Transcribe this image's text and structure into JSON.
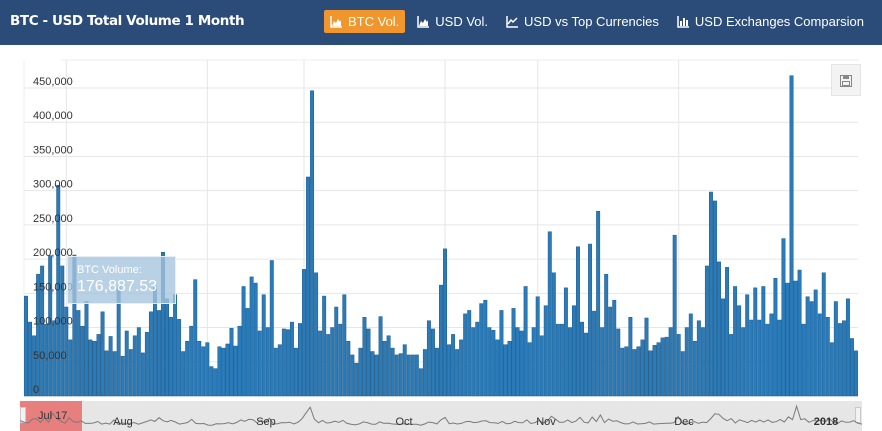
{
  "header": {
    "title": "BTC - USD Total Volume 1 Month",
    "tabs": [
      {
        "label": "BTC Vol.",
        "active": true,
        "icon": "area-chart-icon"
      },
      {
        "label": "USD Vol.",
        "active": false,
        "icon": "area-chart-icon"
      },
      {
        "label": "USD vs Top Currencies",
        "active": false,
        "icon": "line-chart-icon"
      },
      {
        "label": "USD Exchanges Comparsion",
        "active": false,
        "icon": "bar-chart-icon"
      }
    ]
  },
  "colors": {
    "header_bg": "#2b4b78",
    "active_tab": "#f0962d",
    "bar": "#2b7bb9",
    "bar_stroke": "#1d5a8a",
    "grid": "#e6e6e6"
  },
  "tooltip": {
    "label": "BTC Volume:",
    "value": "176,887.53"
  },
  "navigator": {
    "selected_label": "Jul 17"
  },
  "chart_data": {
    "type": "bar",
    "series": [
      {
        "name": "BTC Volume",
        "values": [
          146000,
          108000,
          88000,
          178000,
          190000,
          105000,
          205000,
          110000,
          308000,
          190000,
          130000,
          82000,
          206000,
          125000,
          102000,
          138000,
          82000,
          80000,
          90000,
          123000,
          66000,
          87000,
          65000,
          160000,
          58000,
          95000,
          68000,
          88000,
          100000,
          63000,
          93000,
          123000,
          160000,
          125000,
          210000,
          142000,
          115000,
          148000,
          112000,
          65000,
          80000,
          102000,
          170000,
          80000,
          72000,
          78000,
          43000,
          40000,
          72000,
          70000,
          76000,
          99000,
          73000,
          102000,
          160000,
          128000,
          174000,
          165000,
          95000,
          148000,
          100000,
          198000,
          70000,
          75000,
          98000,
          97000,
          108000,
          70000,
          106000,
          185000,
          320000,
          446000,
          180000,
          95000,
          146000,
          90000,
          100000,
          130000,
          105000,
          148000,
          80000,
          60000,
          48000,
          70000,
          115000,
          98000,
          65000,
          60000,
          116000,
          80000,
          88000,
          70000,
          60000,
          62000,
          75000,
          60000,
          60000,
          60000,
          40000,
          68000,
          110000,
          98000,
          70000,
          162000,
          215000,
          75000,
          90000,
          68000,
          82000,
          120000,
          125000,
          100000,
          108000,
          135000,
          140000,
          100000,
          96000,
          82000,
          125000,
          75000,
          80000,
          128000,
          100000,
          95000,
          160000,
          78000,
          100000,
          145000,
          88000,
          132000,
          240000,
          180000,
          105000,
          105000,
          158000,
          100000,
          132000,
          218000,
          108000,
          92000,
          222000,
          124000,
          270000,
          100000,
          178000,
          130000,
          140000,
          98000,
          70000,
          72000,
          115000,
          68000,
          72000,
          82000,
          114000,
          66000,
          74000,
          78000,
          85000,
          86000,
          100000,
          235000,
          90000,
          65000,
          100000,
          120000,
          80000,
          110000,
          100000,
          190000,
          298000,
          285000,
          196000,
          142000,
          188000,
          90000,
          160000,
          132000,
          100000,
          148000,
          111000,
          158000,
          111000,
          160000,
          105000,
          120000,
          172000,
          111000,
          230000,
          165000,
          468000,
          168000,
          184000,
          105000,
          145000,
          138000,
          155000,
          120000,
          180000,
          115000,
          78000,
          138000,
          106000,
          110000,
          142000,
          84000,
          66000
        ]
      }
    ],
    "x_ticks": [
      "Aug",
      "Sep",
      "Oct",
      "Nov",
      "Dec",
      "2018"
    ],
    "y_ticks": [
      "0",
      "50,000",
      "100,000",
      "150,000",
      "200,000",
      "250,000",
      "300,000",
      "350,000",
      "400,000",
      "450,000"
    ],
    "ylim": [
      0,
      450000
    ],
    "grid": true
  }
}
